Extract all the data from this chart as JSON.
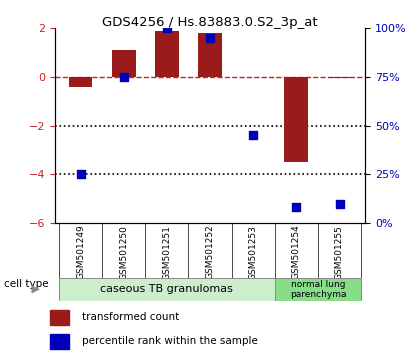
{
  "title": "GDS4256 / Hs.83883.0.S2_3p_at",
  "samples": [
    "GSM501249",
    "GSM501250",
    "GSM501251",
    "GSM501252",
    "GSM501253",
    "GSM501254",
    "GSM501255"
  ],
  "transformed_count": [
    -0.4,
    1.1,
    1.9,
    1.8,
    0.02,
    -3.5,
    -0.05
  ],
  "percentile_rank": [
    25,
    75,
    100,
    95,
    45,
    8,
    10
  ],
  "ylim_left": [
    -6,
    2
  ],
  "ylim_right": [
    0,
    100
  ],
  "bar_color": "#9B1B1B",
  "dot_color": "#0000BB",
  "dashed_line_color": "#CC2222",
  "dotted_line_color": "#000000",
  "group1_label": "caseous TB granulomas",
  "group2_label": "normal lung\nparenchyma",
  "group1_color": "#CCEECC",
  "group2_color": "#88DD88",
  "legend_bar_label": "transformed count",
  "legend_dot_label": "percentile rank within the sample",
  "cell_type_label": "cell type",
  "xtick_bg_color": "#CCCCCC",
  "bar_width": 0.55,
  "dot_size": 40
}
